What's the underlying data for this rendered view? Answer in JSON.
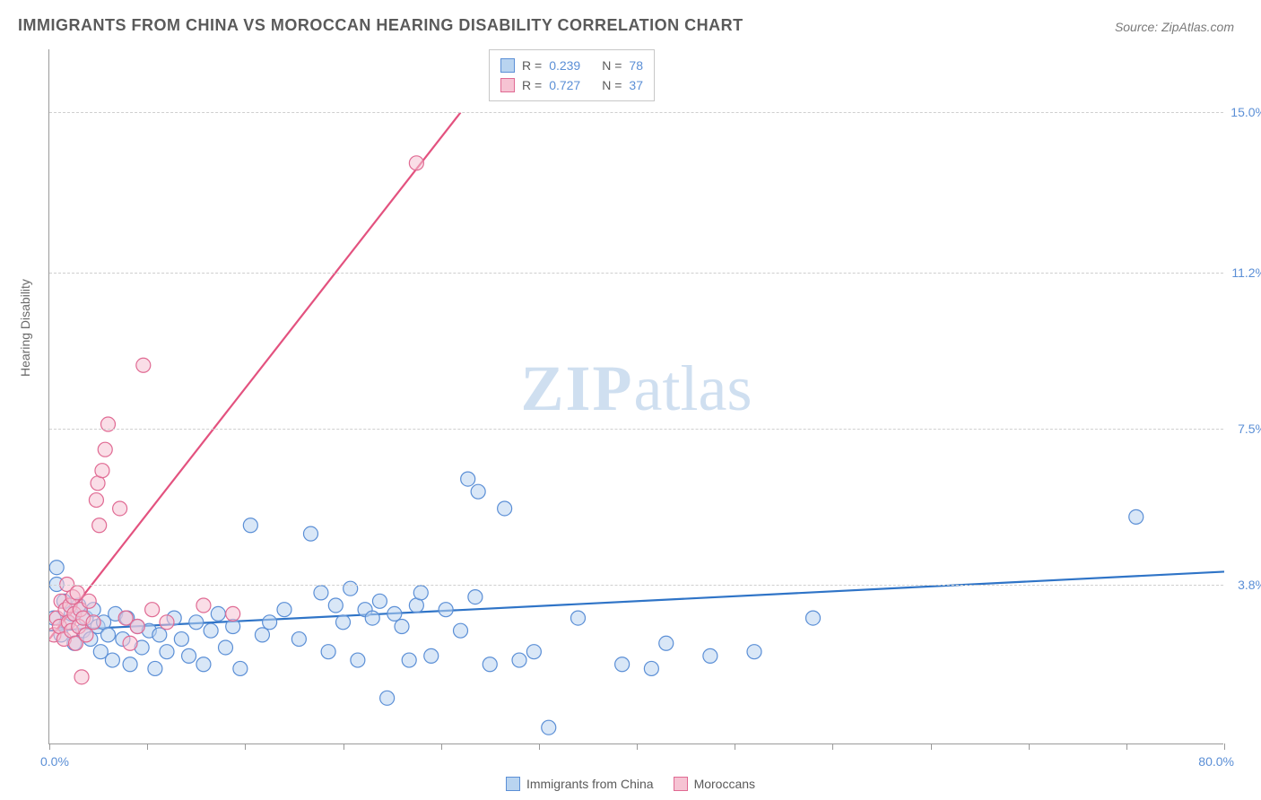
{
  "title": "IMMIGRANTS FROM CHINA VS MOROCCAN HEARING DISABILITY CORRELATION CHART",
  "source": "Source: ZipAtlas.com",
  "yaxis_title": "Hearing Disability",
  "watermark_bold": "ZIP",
  "watermark_rest": "atlas",
  "chart": {
    "type": "scatter",
    "xlim": [
      0,
      80
    ],
    "ylim": [
      0,
      16.5
    ],
    "x_min_label": "0.0%",
    "x_max_label": "80.0%",
    "x_ticks": [
      0,
      6.67,
      13.33,
      20,
      26.67,
      33.33,
      40,
      46.67,
      53.33,
      60,
      66.67,
      73.33,
      80
    ],
    "y_gridlines": [
      {
        "value": 3.8,
        "label": "3.8%"
      },
      {
        "value": 7.5,
        "label": "7.5%"
      },
      {
        "value": 11.2,
        "label": "11.2%"
      },
      {
        "value": 15.0,
        "label": "15.0%"
      }
    ],
    "background_color": "#ffffff",
    "grid_color": "#cfcfcf",
    "axis_color": "#9a9a9a",
    "tick_label_color": "#5b8fd6",
    "series": [
      {
        "name": "Immigrants from China",
        "fill": "#b9d4f0",
        "stroke": "#5b8fd6",
        "line_color": "#2f74c7",
        "marker_radius": 8,
        "fill_opacity": 0.55,
        "R": "0.239",
        "N": "78",
        "trend": {
          "x1": 0,
          "y1": 2.7,
          "x2": 80,
          "y2": 4.1
        },
        "points": [
          [
            0.3,
            3.0
          ],
          [
            0.5,
            4.2
          ],
          [
            0.8,
            2.6
          ],
          [
            1.0,
            3.4
          ],
          [
            1.2,
            2.9
          ],
          [
            1.5,
            3.1
          ],
          [
            1.7,
            2.4
          ],
          [
            2.0,
            3.3
          ],
          [
            2.3,
            2.7
          ],
          [
            2.5,
            3.0
          ],
          [
            2.8,
            2.5
          ],
          [
            3.0,
            3.2
          ],
          [
            3.3,
            2.8
          ],
          [
            3.5,
            2.2
          ],
          [
            3.7,
            2.9
          ],
          [
            4.0,
            2.6
          ],
          [
            4.3,
            2.0
          ],
          [
            4.5,
            3.1
          ],
          [
            5.0,
            2.5
          ],
          [
            5.3,
            3.0
          ],
          [
            5.5,
            1.9
          ],
          [
            6.0,
            2.8
          ],
          [
            6.3,
            2.3
          ],
          [
            6.8,
            2.7
          ],
          [
            7.2,
            1.8
          ],
          [
            7.5,
            2.6
          ],
          [
            8.0,
            2.2
          ],
          [
            8.5,
            3.0
          ],
          [
            9.0,
            2.5
          ],
          [
            9.5,
            2.1
          ],
          [
            10.0,
            2.9
          ],
          [
            10.5,
            1.9
          ],
          [
            11.0,
            2.7
          ],
          [
            11.5,
            3.1
          ],
          [
            12.0,
            2.3
          ],
          [
            12.5,
            2.8
          ],
          [
            13.0,
            1.8
          ],
          [
            13.7,
            5.2
          ],
          [
            14.5,
            2.6
          ],
          [
            15.0,
            2.9
          ],
          [
            16.0,
            3.2
          ],
          [
            17.0,
            2.5
          ],
          [
            17.8,
            5.0
          ],
          [
            18.5,
            3.6
          ],
          [
            19.0,
            2.2
          ],
          [
            19.5,
            3.3
          ],
          [
            20.0,
            2.9
          ],
          [
            20.5,
            3.7
          ],
          [
            21.0,
            2.0
          ],
          [
            21.5,
            3.2
          ],
          [
            22.0,
            3.0
          ],
          [
            22.5,
            3.4
          ],
          [
            23.0,
            1.1
          ],
          [
            23.5,
            3.1
          ],
          [
            24.0,
            2.8
          ],
          [
            24.5,
            2.0
          ],
          [
            25.0,
            3.3
          ],
          [
            25.3,
            3.6
          ],
          [
            26.0,
            2.1
          ],
          [
            27.0,
            3.2
          ],
          [
            28.0,
            2.7
          ],
          [
            28.5,
            6.3
          ],
          [
            29.0,
            3.5
          ],
          [
            29.2,
            6.0
          ],
          [
            30.0,
            1.9
          ],
          [
            31.0,
            5.6
          ],
          [
            32.0,
            2.0
          ],
          [
            33.0,
            2.2
          ],
          [
            34.0,
            0.4
          ],
          [
            36.0,
            3.0
          ],
          [
            39.0,
            1.9
          ],
          [
            41.0,
            1.8
          ],
          [
            42.0,
            2.4
          ],
          [
            45.0,
            2.1
          ],
          [
            48.0,
            2.2
          ],
          [
            52.0,
            3.0
          ],
          [
            74.0,
            5.4
          ],
          [
            0.5,
            3.8
          ]
        ]
      },
      {
        "name": "Moroccans",
        "fill": "#f6c3d3",
        "stroke": "#e06a93",
        "line_color": "#e3527f",
        "marker_radius": 8,
        "fill_opacity": 0.55,
        "R": "0.727",
        "N": "37",
        "trend": {
          "x1": 0,
          "y1": 2.5,
          "x2": 28,
          "y2": 15.0
        },
        "points": [
          [
            0.3,
            2.6
          ],
          [
            0.5,
            3.0
          ],
          [
            0.7,
            2.8
          ],
          [
            0.8,
            3.4
          ],
          [
            1.0,
            2.5
          ],
          [
            1.1,
            3.2
          ],
          [
            1.2,
            3.8
          ],
          [
            1.3,
            2.9
          ],
          [
            1.4,
            3.3
          ],
          [
            1.5,
            2.7
          ],
          [
            1.6,
            3.5
          ],
          [
            1.7,
            3.1
          ],
          [
            1.8,
            2.4
          ],
          [
            1.9,
            3.6
          ],
          [
            2.0,
            2.8
          ],
          [
            2.1,
            3.2
          ],
          [
            2.2,
            1.6
          ],
          [
            2.3,
            3.0
          ],
          [
            2.5,
            2.6
          ],
          [
            2.7,
            3.4
          ],
          [
            3.0,
            2.9
          ],
          [
            3.2,
            5.8
          ],
          [
            3.3,
            6.2
          ],
          [
            3.6,
            6.5
          ],
          [
            3.8,
            7.0
          ],
          [
            4.0,
            7.6
          ],
          [
            4.8,
            5.6
          ],
          [
            5.2,
            3.0
          ],
          [
            5.5,
            2.4
          ],
          [
            6.0,
            2.8
          ],
          [
            6.4,
            9.0
          ],
          [
            7.0,
            3.2
          ],
          [
            8.0,
            2.9
          ],
          [
            10.5,
            3.3
          ],
          [
            12.5,
            3.1
          ],
          [
            25.0,
            13.8
          ],
          [
            3.4,
            5.2
          ]
        ]
      }
    ]
  },
  "legend_box": {
    "r_label": "R =",
    "n_label": "N ="
  },
  "bottom_legend": {
    "s1": "Immigrants from China",
    "s2": "Moroccans"
  }
}
